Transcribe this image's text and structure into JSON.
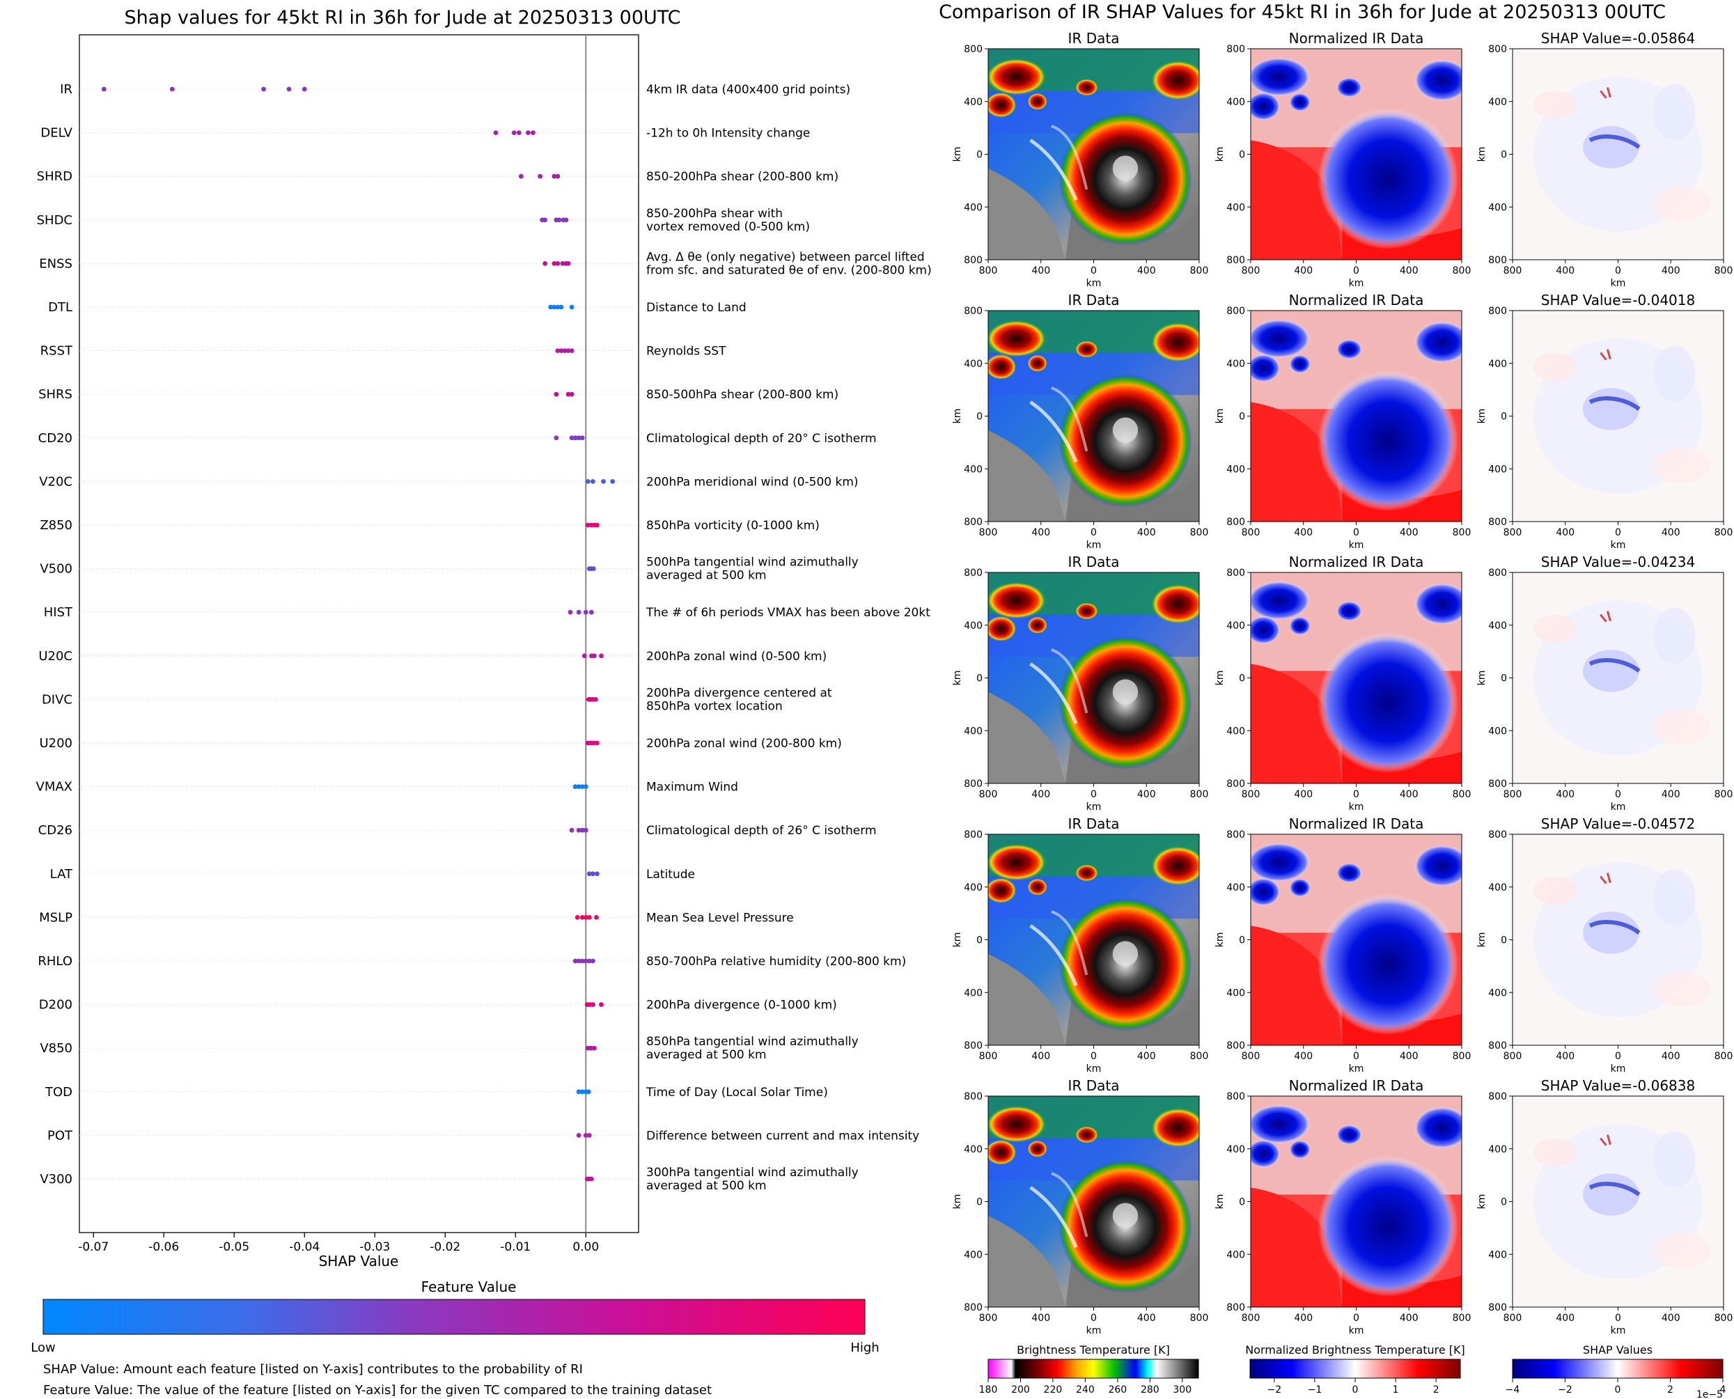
{
  "left_title": "Shap values for 45kt RI in 36h for Jude at 20250313 00UTC",
  "right_title": "Comparison of IR SHAP Values for 45kt RI in 36h for Jude at 20250313 00UTC",
  "chart_data": [
    {
      "type": "scatter",
      "title": "Shap values for 45kt RI in 36h for Jude at 20250313 00UTC",
      "xlabel": "SHAP Value",
      "xlim": [
        -0.072,
        0.0075
      ],
      "xticks": [
        "-0.07",
        "-0.06",
        "-0.05",
        "-0.04",
        "-0.03",
        "-0.02",
        "-0.01",
        "0.00"
      ],
      "xtick_values": [
        -0.07,
        -0.06,
        -0.05,
        -0.04,
        -0.03,
        -0.02,
        -0.01,
        0.0
      ],
      "grid": false,
      "features": [
        {
          "name": "IR",
          "description": "4km IR data (400x400 grid points)",
          "shap": [
            -0.0685,
            -0.0588,
            -0.0458,
            -0.0422,
            -0.04
          ],
          "feature_value": 0.45
        },
        {
          "name": "DELV",
          "description": "-12h to 0h Intensity change",
          "shap": [
            -0.0128,
            -0.0102,
            -0.0095,
            -0.0082,
            -0.0075
          ],
          "feature_value": 0.55
        },
        {
          "name": "SHRD",
          "description": "850-200hPa shear (200-800 km)",
          "shap": [
            -0.0092,
            -0.0065,
            -0.0045,
            -0.004
          ],
          "feature_value": 0.55
        },
        {
          "name": "SHDC",
          "description": "850-200hPa shear with\nvortex removed (0-500 km)",
          "shap": [
            -0.0062,
            -0.0058,
            -0.0042,
            -0.0038,
            -0.0032,
            -0.0028
          ],
          "feature_value": 0.45
        },
        {
          "name": "ENSS",
          "description": "Avg. Δ θe (only negative) between parcel lifted\nfrom sfc. and saturated θe of env. (200-800 km)",
          "shap": [
            -0.0058,
            -0.0045,
            -0.004,
            -0.0033,
            -0.0028,
            -0.0025
          ],
          "feature_value": 0.65
        },
        {
          "name": "DTL",
          "description": "Distance to Land",
          "shap": [
            -0.005,
            -0.0045,
            -0.004,
            -0.0035,
            -0.002
          ],
          "feature_value": 0.05
        },
        {
          "name": "RSST",
          "description": "Reynolds SST",
          "shap": [
            -0.004,
            -0.0035,
            -0.003,
            -0.0025,
            -0.002
          ],
          "feature_value": 0.6
        },
        {
          "name": "SHRS",
          "description": "850-500hPa shear (200-800 km)",
          "shap": [
            -0.0042,
            -0.0025,
            -0.002
          ],
          "feature_value": 0.68
        },
        {
          "name": "CD20",
          "description": "Climatological depth of 20° C isotherm",
          "shap": [
            -0.0042,
            -0.002,
            -0.0015,
            -0.001,
            -0.0005
          ],
          "feature_value": 0.4
        },
        {
          "name": "V20C",
          "description": "200hPa meridional wind (0-500 km)",
          "shap": [
            0.0003,
            0.001,
            0.0025,
            0.0038
          ],
          "feature_value": 0.25
        },
        {
          "name": "Z850",
          "description": "850hPa vorticity (0-1000 km)",
          "shap": [
            0.0003,
            0.0008,
            0.0012,
            0.0016
          ],
          "feature_value": 0.88
        },
        {
          "name": "V500",
          "description": "500hPa tangential wind azimuthally\naveraged at 500 km",
          "shap": [
            0.0005,
            0.0008,
            0.0011
          ],
          "feature_value": 0.3
        },
        {
          "name": "HIST",
          "description": "The # of 6h periods VMAX has been above 20kt",
          "shap": [
            -0.0022,
            -0.001,
            0.0,
            0.0008
          ],
          "feature_value": 0.45
        },
        {
          "name": "U20C",
          "description": "200hPa zonal wind (0-500 km)",
          "shap": [
            -0.0002,
            0.0008,
            0.0012,
            0.0022
          ],
          "feature_value": 0.6
        },
        {
          "name": "DIVC",
          "description": "200hPa divergence centered at\n850hPa vortex location",
          "shap": [
            0.0004,
            0.0007,
            0.001,
            0.0014
          ],
          "feature_value": 0.82
        },
        {
          "name": "U200",
          "description": "200hPa zonal wind (200-800 km)",
          "shap": [
            0.0003,
            0.0007,
            0.0011,
            0.0016
          ],
          "feature_value": 0.78
        },
        {
          "name": "VMAX",
          "description": "Maximum Wind",
          "shap": [
            -0.0015,
            -0.001,
            -0.0005,
            0.0
          ],
          "feature_value": 0.05
        },
        {
          "name": "CD26",
          "description": "Climatological depth of 26° C isotherm",
          "shap": [
            -0.002,
            -0.001,
            -0.0005,
            0.0
          ],
          "feature_value": 0.45
        },
        {
          "name": "LAT",
          "description": "Latitude",
          "shap": [
            0.0005,
            0.001,
            0.0016
          ],
          "feature_value": 0.3
        },
        {
          "name": "MSLP",
          "description": "Mean Sea Level Pressure",
          "shap": [
            -0.0012,
            -0.0005,
            0.0,
            0.0005,
            0.0015
          ],
          "feature_value": 0.95
        },
        {
          "name": "RHLO",
          "description": "850-700hPa relative humidity (200-800 km)",
          "shap": [
            -0.0015,
            -0.001,
            -0.0005,
            0.0,
            0.0005,
            0.001
          ],
          "feature_value": 0.45
        },
        {
          "name": "D200",
          "description": "200hPa divergence (0-1000 km)",
          "shap": [
            0.0002,
            0.0006,
            0.001,
            0.0022
          ],
          "feature_value": 0.85
        },
        {
          "name": "V850",
          "description": "850hPa tangential wind azimuthally\naveraged at 500 km",
          "shap": [
            0.0003,
            0.0007,
            0.0012
          ],
          "feature_value": 0.6
        },
        {
          "name": "TOD",
          "description": "Time of Day (Local Solar Time)",
          "shap": [
            -0.001,
            -0.0005,
            0.0,
            0.0004
          ],
          "feature_value": 0.05
        },
        {
          "name": "POT",
          "description": "Difference between current and max intensity",
          "shap": [
            -0.001,
            0.0,
            0.0005
          ],
          "feature_value": 0.55
        },
        {
          "name": "V300",
          "description": "300hPa tangential wind azimuthally\naveraged at 500 km",
          "shap": [
            0.0002,
            0.0005,
            0.0008
          ],
          "feature_value": 0.65
        }
      ],
      "colorbar": {
        "title": "Feature Value",
        "low_label": "Low",
        "high_label": "High",
        "colors": [
          "#0088ff",
          "#4a5be0",
          "#9b2ab3",
          "#d6008f",
          "#ff0055"
        ]
      },
      "notes": [
        "SHAP Value: Amount each feature [listed on Y-axis] contributes to the probability of RI",
        "Feature Value: The value of the feature [listed on Y-axis] for the given TC compared to the training dataset"
      ]
    },
    {
      "type": "heatmap",
      "title": "Comparison of IR SHAP Values for 45kt RI in 36h for Jude at 20250313 00UTC",
      "column_titles": [
        "IR Data",
        "Normalized IR Data"
      ],
      "shap_titles": [
        "SHAP Value=-0.05864",
        "SHAP Value=-0.04018",
        "SHAP Value=-0.04234",
        "SHAP Value=-0.04572",
        "SHAP Value=-0.06838"
      ],
      "xlabel": "km",
      "ylabel": "km",
      "xtick_labels": [
        "800",
        "400",
        "0",
        "400",
        "800"
      ],
      "ytick_labels": [
        "800",
        "400",
        "0",
        "400",
        "800"
      ],
      "colorbars": [
        {
          "title": "Brightness Temperature [K]",
          "ticks": [
            "180",
            "200",
            "220",
            "240",
            "260",
            "280",
            "300"
          ],
          "range": [
            180,
            310
          ],
          "colors": [
            "#ff00ff",
            "#000000",
            "#8b0000",
            "#ff0000",
            "#ffa500",
            "#ffff00",
            "#00c000",
            "#0000ff",
            "#00ffff",
            "#ffffff",
            "#808080",
            "#000000"
          ]
        },
        {
          "title": "Normalized Brightness Temperature [K]",
          "ticks": [
            "−2",
            "−1",
            "0",
            "1",
            "2"
          ],
          "range": [
            -2.6,
            2.6
          ],
          "colors": [
            "#00007f",
            "#0000ff",
            "#ffffff",
            "#ff0000",
            "#7f0000"
          ]
        },
        {
          "title": "SHAP Values",
          "ticks": [
            "−4",
            "−2",
            "0",
            "2",
            "4"
          ],
          "range": [
            -4,
            4
          ],
          "colors": [
            "#00007f",
            "#0000ff",
            "#ffffff",
            "#ff0000",
            "#7f0000"
          ],
          "offset_label": "1e−5"
        }
      ]
    }
  ]
}
